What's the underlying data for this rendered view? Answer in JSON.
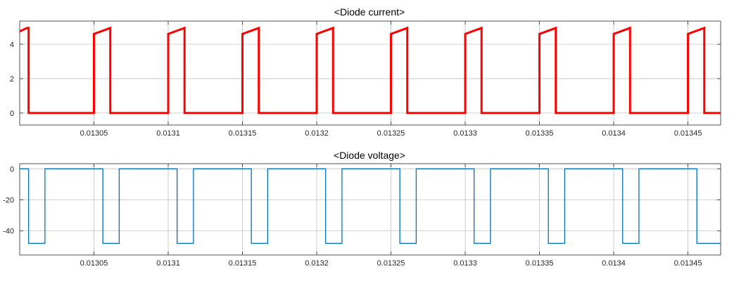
{
  "chart_data": [
    {
      "type": "line",
      "title": "<Diode current>",
      "xlabel": "",
      "ylabel": "",
      "xlim": [
        0.013,
        0.013472
      ],
      "ylim": [
        -0.7,
        5.35
      ],
      "x_ticks": [
        0.01305,
        0.0131,
        0.01315,
        0.0132,
        0.01325,
        0.0133,
        0.01335,
        0.0134,
        0.01345
      ],
      "x_tick_labels": [
        "0.01305",
        "0.0131",
        "0.01315",
        "0.0132",
        "0.01325",
        "0.0133",
        "0.01335",
        "0.0134",
        "0.01345"
      ],
      "y_ticks": [
        0,
        2,
        4
      ],
      "y_tick_labels": [
        "0",
        "2",
        "4"
      ],
      "grid": true,
      "series": [
        {
          "color": "#ff0000",
          "x": [
            0.013,
            0.013005,
            0.013006,
            0.013006,
            0.013008,
            0.013008,
            0.01305,
            0.01305,
            0.013061,
            0.013061,
            0.0131,
            0.0131,
            0.013111,
            0.013111,
            0.01315,
            0.01315,
            0.013161,
            0.013161,
            0.0132,
            0.0132,
            0.013211,
            0.013211,
            0.01325,
            0.01325,
            0.013261,
            0.013261,
            0.0133,
            0.0133,
            0.013311,
            0.013311,
            0.01335,
            0.01335,
            0.013361,
            0.013361,
            0.0134,
            0.0134,
            0.013411,
            0.013411,
            0.01345,
            0.01345,
            0.013461,
            0.013461,
            0.013472
          ],
          "y": [
            4.75,
            4.95,
            4.95,
            0,
            0,
            0,
            0,
            4.6,
            4.95,
            0,
            0,
            4.6,
            4.95,
            0,
            0,
            4.6,
            4.95,
            0,
            0,
            4.6,
            4.95,
            0,
            0,
            4.6,
            4.95,
            0,
            0,
            4.6,
            4.95,
            0,
            0,
            4.6,
            4.95,
            0,
            0,
            4.6,
            4.95,
            0,
            0,
            4.6,
            4.95,
            0,
            0
          ]
        }
      ]
    },
    {
      "type": "line",
      "title": "<Diode voltage>",
      "xlabel": "",
      "ylabel": "",
      "xlim": [
        0.013,
        0.013472
      ],
      "ylim": [
        -55.5,
        3.3
      ],
      "x_ticks": [
        0.01305,
        0.0131,
        0.01315,
        0.0132,
        0.01325,
        0.0133,
        0.01335,
        0.0134,
        0.01345
      ],
      "x_tick_labels": [
        "0.01305",
        "0.0131",
        "0.01315",
        "0.0132",
        "0.01325",
        "0.0133",
        "0.01335",
        "0.0134",
        "0.01345"
      ],
      "y_ticks": [
        -40,
        -20,
        0
      ],
      "y_tick_labels": [
        "-40",
        "-20",
        "0"
      ],
      "grid": true,
      "series": [
        {
          "color": "#0072bd",
          "x": [
            0.013,
            0.013006,
            0.013006,
            0.013017,
            0.013017,
            0.013056,
            0.013056,
            0.013067,
            0.013067,
            0.013106,
            0.013106,
            0.013117,
            0.013117,
            0.013156,
            0.013156,
            0.013167,
            0.013167,
            0.013206,
            0.013206,
            0.013217,
            0.013217,
            0.013256,
            0.013256,
            0.013267,
            0.013267,
            0.013306,
            0.013306,
            0.013317,
            0.013317,
            0.013356,
            0.013356,
            0.013367,
            0.013367,
            0.013406,
            0.013406,
            0.013417,
            0.013417,
            0.013456,
            0.013456,
            0.013467,
            0.013467,
            0.013472
          ],
          "y": [
            0,
            0,
            -48,
            -48,
            0,
            0,
            -48,
            -48,
            0,
            0,
            -48,
            -48,
            0,
            0,
            -48,
            -48,
            0,
            0,
            -48,
            -48,
            0,
            0,
            -48,
            -48,
            0,
            0,
            -48,
            -48,
            0,
            0,
            -48,
            -48,
            0,
            0,
            -48,
            -48,
            0,
            0,
            -48,
            -48,
            -48,
            -48
          ]
        }
      ]
    }
  ]
}
